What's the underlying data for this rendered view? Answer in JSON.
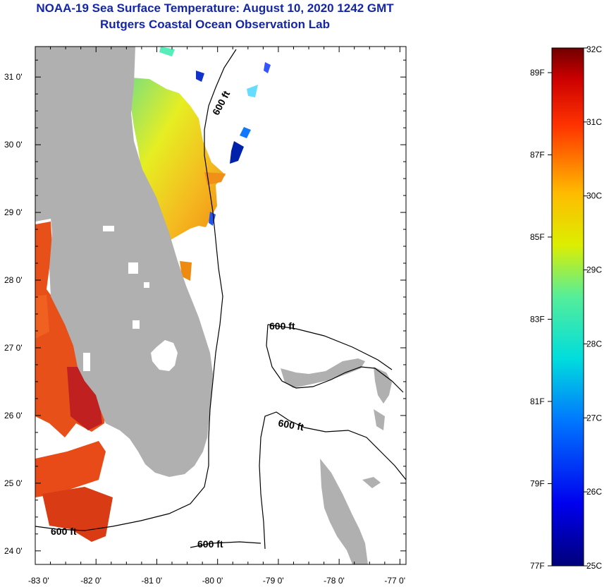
{
  "header": {
    "title": "NOAA-19 Sea Surface Temperature:  August 10, 2020 1242 GMT",
    "subtitle": "Rutgers Coastal Ocean Observation Lab"
  },
  "map": {
    "lon_range": [
      -83.0,
      -76.9
    ],
    "lat_range": [
      23.8,
      31.45
    ],
    "x_ticks": [
      {
        "lon": -83,
        "label": "-83 0'"
      },
      {
        "lon": -82,
        "label": "-82 0'"
      },
      {
        "lon": -81,
        "label": "-81 0'"
      },
      {
        "lon": -80,
        "label": "-80 0'"
      },
      {
        "lon": -79,
        "label": "-79 0'"
      },
      {
        "lon": -78,
        "label": "-78 0'"
      },
      {
        "lon": -77,
        "label": "-77 0'"
      }
    ],
    "y_ticks": [
      {
        "lat": 31,
        "label": "31 0'"
      },
      {
        "lat": 30,
        "label": "30 0'"
      },
      {
        "lat": 29,
        "label": "29 0'"
      },
      {
        "lat": 28,
        "label": "28 0'"
      },
      {
        "lat": 27,
        "label": "27 0'"
      },
      {
        "lat": 26,
        "label": "26 0'"
      },
      {
        "lat": 25,
        "label": "25 0'"
      },
      {
        "lat": 24,
        "label": "24 0'"
      }
    ],
    "contour_labels": [
      "600 ft",
      "600 ft",
      "600 ft",
      "600 ft",
      "600 ft"
    ],
    "colors": {
      "land": "#b0b0b0",
      "frame": "#000000",
      "title": "#1426a8"
    }
  },
  "colorbar": {
    "celsius_range": [
      25,
      32
    ],
    "celsius_labels": [
      "32C",
      "31C",
      "30C",
      "29C",
      "28C",
      "27C",
      "26C",
      "25C"
    ],
    "fahrenheit_labels": [
      {
        "value": 89,
        "label": "89F"
      },
      {
        "value": 87,
        "label": "87F"
      },
      {
        "value": 85,
        "label": "85F"
      },
      {
        "value": 83,
        "label": "83F"
      },
      {
        "value": 81,
        "label": "81F"
      },
      {
        "value": 79,
        "label": "79F"
      },
      {
        "value": 77,
        "label": "77F"
      }
    ]
  }
}
